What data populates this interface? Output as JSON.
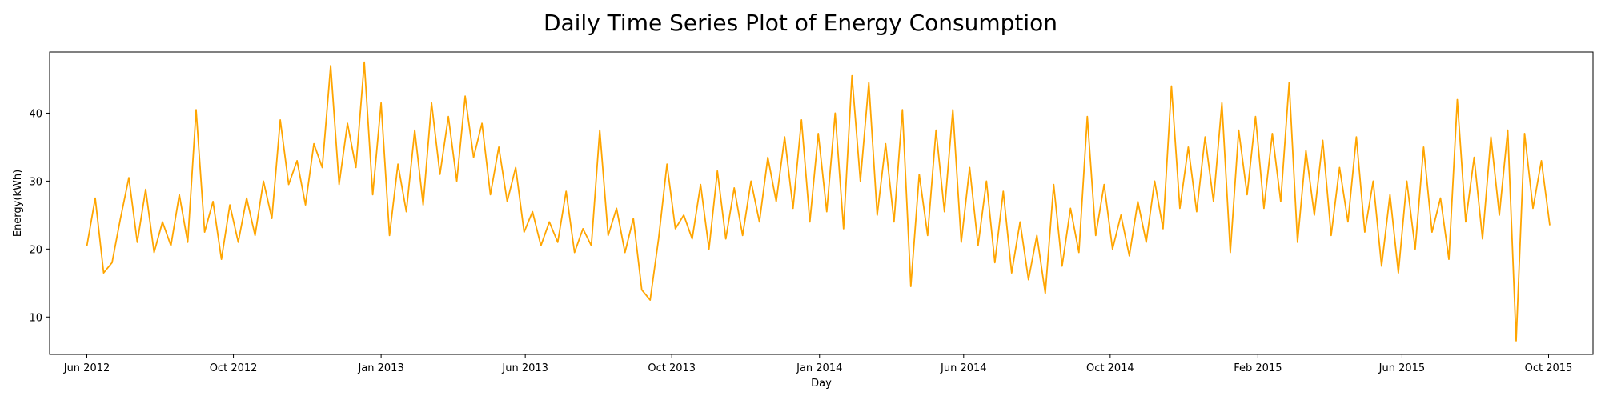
{
  "chart_data": {
    "type": "line",
    "title": "Daily Time Series Plot of Energy Consumption",
    "xlabel": "Day",
    "ylabel": "Energy(kWh)",
    "xlim": [
      "2012-05-01",
      "2015-11-07"
    ],
    "ylim": [
      4.5,
      49.0
    ],
    "grid": false,
    "line_color": "#FFA500",
    "x_ticks": [
      {
        "date": "2012-06-01",
        "label": "Jun 2012"
      },
      {
        "date": "2012-10-01",
        "label": "Oct 2012"
      },
      {
        "date": "2013-02-01",
        "label": "Jan 2013"
      },
      {
        "date": "2013-06-01",
        "label": "Jun 2013"
      },
      {
        "date": "2013-10-01",
        "label": "Oct 2013"
      },
      {
        "date": "2014-02-01",
        "label": "Jan 2014"
      },
      {
        "date": "2014-06-01",
        "label": "Jun 2014"
      },
      {
        "date": "2014-10-01",
        "label": "Oct 2014"
      },
      {
        "date": "2015-02-01",
        "label": "Feb 2015"
      },
      {
        "date": "2015-06-01",
        "label": "Jun 2015"
      },
      {
        "date": "2015-10-01",
        "label": "Oct 2015"
      }
    ],
    "y_ticks": [
      10,
      20,
      30,
      40
    ],
    "series": [
      {
        "name": "",
        "x": [
          "2012-06-01",
          "2012-06-08",
          "2012-06-15",
          "2012-06-22",
          "2012-06-29",
          "2012-07-06",
          "2012-07-13",
          "2012-07-20",
          "2012-07-27",
          "2012-08-03",
          "2012-08-10",
          "2012-08-17",
          "2012-08-24",
          "2012-08-31",
          "2012-09-07",
          "2012-09-14",
          "2012-09-21",
          "2012-09-28",
          "2012-10-05",
          "2012-10-12",
          "2012-10-19",
          "2012-10-26",
          "2012-11-02",
          "2012-11-09",
          "2012-11-16",
          "2012-11-23",
          "2012-11-30",
          "2012-12-07",
          "2012-12-14",
          "2012-12-21",
          "2012-12-28",
          "2013-01-04",
          "2013-01-11",
          "2013-01-18",
          "2013-01-25",
          "2013-02-01",
          "2013-02-08",
          "2013-02-15",
          "2013-02-22",
          "2013-03-01",
          "2013-03-08",
          "2013-03-15",
          "2013-03-22",
          "2013-03-29",
          "2013-04-05",
          "2013-04-12",
          "2013-04-19",
          "2013-04-26",
          "2013-05-03",
          "2013-05-10",
          "2013-05-17",
          "2013-05-24",
          "2013-05-31",
          "2013-06-07",
          "2013-06-14",
          "2013-06-21",
          "2013-06-28",
          "2013-07-05",
          "2013-07-12",
          "2013-07-19",
          "2013-07-26",
          "2013-08-02",
          "2013-08-09",
          "2013-08-16",
          "2013-08-23",
          "2013-08-30",
          "2013-09-06",
          "2013-09-13",
          "2013-09-20",
          "2013-09-27",
          "2013-10-04",
          "2013-10-11",
          "2013-10-18",
          "2013-10-25",
          "2013-11-01",
          "2013-11-08",
          "2013-11-15",
          "2013-11-22",
          "2013-11-29",
          "2013-12-06",
          "2013-12-13",
          "2013-12-20",
          "2013-12-27",
          "2014-01-03",
          "2014-01-10",
          "2014-01-17",
          "2014-01-24",
          "2014-01-31",
          "2014-02-07",
          "2014-02-14",
          "2014-02-21",
          "2014-02-28",
          "2014-03-07",
          "2014-03-14",
          "2014-03-21",
          "2014-03-28",
          "2014-04-04",
          "2014-04-11",
          "2014-04-18",
          "2014-04-25",
          "2014-05-02",
          "2014-05-09",
          "2014-05-16",
          "2014-05-23",
          "2014-05-30",
          "2014-06-06",
          "2014-06-13",
          "2014-06-20",
          "2014-06-27",
          "2014-07-04",
          "2014-07-11",
          "2014-07-18",
          "2014-07-25",
          "2014-08-01",
          "2014-08-08",
          "2014-08-15",
          "2014-08-22",
          "2014-08-29",
          "2014-09-05",
          "2014-09-12",
          "2014-09-19",
          "2014-09-26",
          "2014-10-03",
          "2014-10-10",
          "2014-10-17",
          "2014-10-24",
          "2014-10-31",
          "2014-11-07",
          "2014-11-14",
          "2014-11-21",
          "2014-11-28",
          "2014-12-05",
          "2014-12-12",
          "2014-12-19",
          "2014-12-26",
          "2015-01-02",
          "2015-01-09",
          "2015-01-16",
          "2015-01-23",
          "2015-01-30",
          "2015-02-06",
          "2015-02-13",
          "2015-02-20",
          "2015-02-27",
          "2015-03-06",
          "2015-03-13",
          "2015-03-20",
          "2015-03-27",
          "2015-04-03",
          "2015-04-10",
          "2015-04-17",
          "2015-04-24",
          "2015-05-01",
          "2015-05-08",
          "2015-05-15",
          "2015-05-22",
          "2015-05-29",
          "2015-06-05",
          "2015-06-12",
          "2015-06-19",
          "2015-06-26",
          "2015-07-03",
          "2015-07-10",
          "2015-07-17",
          "2015-07-24",
          "2015-07-31",
          "2015-08-07",
          "2015-08-14",
          "2015-08-21",
          "2015-08-28",
          "2015-09-04",
          "2015-09-11",
          "2015-09-18",
          "2015-09-25",
          "2015-10-02"
        ],
        "y": [
          20.4,
          27.5,
          16.5,
          18.0,
          24.5,
          30.5,
          21.0,
          28.8,
          19.5,
          24.0,
          20.5,
          28.0,
          21.0,
          40.5,
          22.5,
          27.0,
          18.5,
          26.5,
          21.0,
          27.5,
          22.0,
          30.0,
          24.5,
          39.0,
          29.5,
          33.0,
          26.5,
          35.5,
          32.0,
          47.0,
          29.5,
          38.5,
          32.0,
          47.5,
          28.0,
          41.5,
          22.0,
          32.5,
          25.5,
          37.5,
          26.5,
          41.5,
          31.0,
          39.5,
          30.0,
          42.5,
          33.5,
          38.5,
          28.0,
          35.0,
          27.0,
          32.0,
          22.5,
          25.5,
          20.5,
          24.0,
          21.0,
          28.5,
          19.5,
          23.0,
          20.5,
          37.5,
          22.0,
          26.0,
          19.5,
          24.5,
          14.0,
          12.5,
          21.5,
          32.5,
          23.0,
          25.0,
          21.5,
          29.5,
          20.0,
          31.5,
          21.5,
          29.0,
          22.0,
          30.0,
          24.0,
          33.5,
          27.0,
          36.5,
          26.0,
          39.0,
          24.0,
          37.0,
          25.5,
          40.0,
          23.0,
          45.5,
          30.0,
          44.5,
          25.0,
          35.5,
          24.0,
          40.5,
          14.5,
          31.0,
          22.0,
          37.5,
          25.5,
          40.5,
          21.0,
          32.0,
          20.5,
          30.0,
          18.0,
          28.5,
          16.5,
          24.0,
          15.5,
          22.0,
          13.5,
          29.5,
          17.5,
          26.0,
          19.5,
          39.5,
          22.0,
          29.5,
          20.0,
          25.0,
          19.0,
          27.0,
          21.0,
          30.0,
          23.0,
          44.0,
          26.0,
          35.0,
          25.5,
          36.5,
          27.0,
          41.5,
          19.5,
          37.5,
          28.0,
          39.5,
          26.0,
          37.0,
          27.0,
          44.5,
          21.0,
          34.5,
          25.0,
          36.0,
          22.0,
          32.0,
          24.0,
          36.5,
          22.5,
          30.0,
          17.5,
          28.0,
          16.5,
          30.0,
          20.0,
          35.0,
          22.5,
          27.5,
          18.5,
          42.0,
          24.0,
          33.5,
          21.5,
          36.5,
          25.0,
          37.5,
          6.5,
          37.0,
          26.0,
          33.0,
          23.5
        ]
      }
    ]
  }
}
